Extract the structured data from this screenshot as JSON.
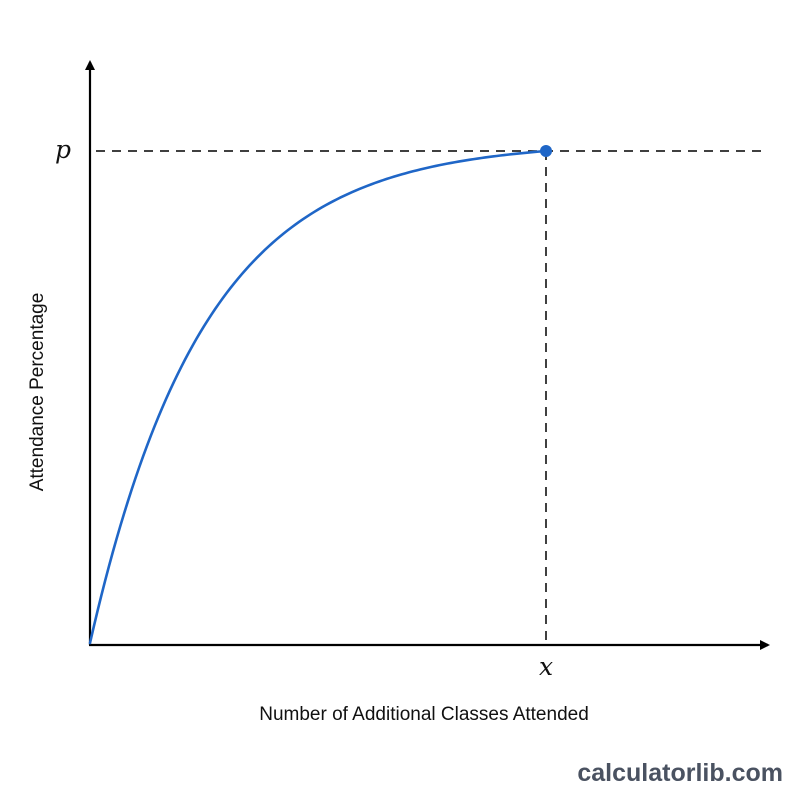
{
  "chart_data": {
    "type": "line",
    "title": "",
    "xlabel": "Number of Additional Classes Attended",
    "ylabel": "Attendance Percentage",
    "x_tick_labels": [
      "x"
    ],
    "y_tick_labels": [
      "p"
    ],
    "marked_point": {
      "x_label": "x",
      "y_label": "p"
    },
    "grid": false,
    "legend": "none",
    "series": [
      {
        "color": "#1f66c7",
        "shape": "concave increasing, saturating curve starting at the origin and reaching p at x"
      }
    ]
  },
  "colors": {
    "curve": "#1f66c7",
    "point": "#1f66c7",
    "axes": "#000000",
    "watermark": "#4a5261"
  },
  "watermark": {
    "text": "calculatorlib.com"
  }
}
